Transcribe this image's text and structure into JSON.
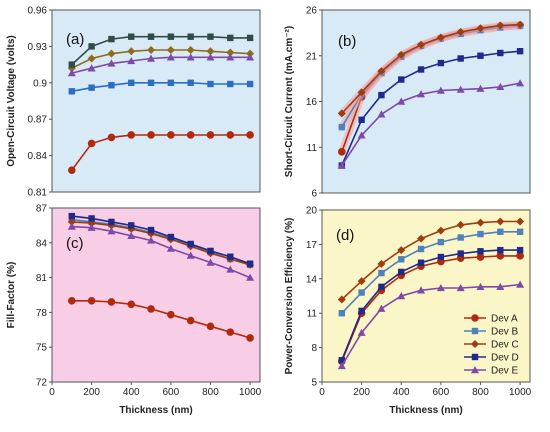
{
  "chart_data": [
    {
      "panel": "(a)",
      "type": "line",
      "bg": "#d9eaf7",
      "xlabel": "",
      "ylabel": "Open-Circuit Voltage (volts)",
      "xlim": [
        0,
        1050
      ],
      "ylim": [
        0.81,
        0.96
      ],
      "yticks": [
        0.81,
        0.84,
        0.87,
        0.9,
        0.93,
        0.96
      ],
      "xticks": [],
      "ytick_labels": [
        "0.81",
        "0.84",
        "0.87",
        "0.9",
        "0.93",
        "0.96"
      ],
      "xtick_labels": [],
      "x": [
        100,
        200,
        300,
        400,
        500,
        600,
        700,
        800,
        900,
        1000
      ],
      "series": [
        {
          "name": "Dev A",
          "values": [
            0.828,
            0.85,
            0.855,
            0.857,
            0.857,
            0.857,
            0.857,
            0.857,
            0.857,
            0.857
          ]
        },
        {
          "name": "Dev B",
          "values": [
            0.893,
            0.896,
            0.898,
            0.9,
            0.9,
            0.9,
            0.9,
            0.899,
            0.899,
            0.899
          ]
        },
        {
          "name": "Dev C",
          "values": [
            0.912,
            0.92,
            0.924,
            0.926,
            0.927,
            0.927,
            0.927,
            0.926,
            0.925,
            0.924
          ]
        },
        {
          "name": "Dev D",
          "values": [
            0.915,
            0.93,
            0.936,
            0.938,
            0.938,
            0.938,
            0.938,
            0.938,
            0.937,
            0.937
          ]
        },
        {
          "name": "Dev E",
          "values": [
            0.908,
            0.912,
            0.916,
            0.918,
            0.92,
            0.921,
            0.921,
            0.921,
            0.921,
            0.921
          ]
        }
      ]
    },
    {
      "panel": "(b)",
      "type": "line",
      "bg": "#d9eaf7",
      "xlabel": "",
      "ylabel": "Short-Circuit Current (mA.cm⁻²)",
      "xlim": [
        0,
        1050
      ],
      "ylim": [
        6,
        26
      ],
      "yticks": [
        6,
        11,
        16,
        21,
        26
      ],
      "xticks": [],
      "ytick_labels": [
        "6",
        "11",
        "16",
        "21",
        "26"
      ],
      "xtick_labels": [],
      "x": [
        100,
        200,
        300,
        400,
        500,
        600,
        700,
        800,
        900,
        1000
      ],
      "series": [
        {
          "name": "Dev A",
          "values": [
            10.5,
            16.5,
            19.2,
            21.0,
            22.1,
            22.9,
            23.5,
            23.9,
            24.2,
            24.3
          ]
        },
        {
          "name": "Dev B",
          "values": [
            13.2,
            16.8,
            19.1,
            20.9,
            22.1,
            22.9,
            23.4,
            23.8,
            24.1,
            24.3
          ]
        },
        {
          "name": "Dev C",
          "values": [
            14.7,
            17.0,
            19.3,
            21.1,
            22.2,
            23.0,
            23.6,
            24.0,
            24.3,
            24.4
          ]
        },
        {
          "name": "Dev D",
          "values": [
            9.0,
            14.0,
            16.7,
            18.4,
            19.5,
            20.2,
            20.7,
            21.0,
            21.3,
            21.5
          ]
        },
        {
          "name": "Dev E",
          "values": [
            9.0,
            12.3,
            14.6,
            16.0,
            16.8,
            17.2,
            17.3,
            17.4,
            17.6,
            18.0
          ]
        }
      ]
    },
    {
      "panel": "(c)",
      "type": "line",
      "bg": "#f8cde6",
      "xlabel": "Thickness (nm)",
      "ylabel": "Fill-Factor (%)",
      "xlim": [
        0,
        1050
      ],
      "ylim": [
        72,
        87
      ],
      "yticks": [
        72,
        75,
        78,
        81,
        84,
        87
      ],
      "xticks": [
        0,
        200,
        400,
        600,
        800,
        1000
      ],
      "ytick_labels": [
        "72",
        "75",
        "78",
        "81",
        "84",
        "87"
      ],
      "xtick_labels": [
        "0",
        "200",
        "400",
        "600",
        "800",
        "1000"
      ],
      "x": [
        100,
        200,
        300,
        400,
        500,
        600,
        700,
        800,
        900,
        1000
      ],
      "series": [
        {
          "name": "Dev A",
          "values": [
            79.0,
            79.0,
            78.9,
            78.7,
            78.3,
            77.8,
            77.3,
            76.8,
            76.3,
            75.8
          ]
        },
        {
          "name": "Dev B",
          "values": [
            86.0,
            85.8,
            85.6,
            85.3,
            84.9,
            84.4,
            83.8,
            83.2,
            82.6,
            82.1
          ]
        },
        {
          "name": "Dev C",
          "values": [
            85.8,
            85.7,
            85.5,
            85.2,
            84.8,
            84.3,
            83.7,
            83.1,
            82.6,
            82.1
          ]
        },
        {
          "name": "Dev D",
          "values": [
            86.3,
            86.1,
            85.8,
            85.5,
            85.1,
            84.5,
            83.9,
            83.3,
            82.8,
            82.2
          ]
        },
        {
          "name": "Dev E",
          "values": [
            85.4,
            85.3,
            85.0,
            84.6,
            84.2,
            83.5,
            82.9,
            82.3,
            81.7,
            81.0
          ]
        }
      ]
    },
    {
      "panel": "(d)",
      "type": "line",
      "bg": "#fbf6c8",
      "xlabel": "Thickness (nm)",
      "ylabel": "Power-Conversion Efficiency (%)",
      "xlim": [
        0,
        1050
      ],
      "ylim": [
        5,
        20
      ],
      "yticks": [
        5,
        8,
        11,
        14,
        17,
        20
      ],
      "xticks": [
        0,
        200,
        400,
        600,
        800,
        1000
      ],
      "ytick_labels": [
        "5",
        "8",
        "11",
        "14",
        "17",
        "20"
      ],
      "xtick_labels": [
        "0",
        "200",
        "400",
        "600",
        "800",
        "1000"
      ],
      "x": [
        100,
        200,
        300,
        400,
        500,
        600,
        700,
        800,
        900,
        1000
      ],
      "series": [
        {
          "name": "Dev A",
          "values": [
            6.8,
            11.0,
            13.0,
            14.3,
            15.1,
            15.5,
            15.8,
            15.9,
            16.0,
            16.0
          ]
        },
        {
          "name": "Dev B",
          "values": [
            11.0,
            12.8,
            14.5,
            15.7,
            16.6,
            17.2,
            17.6,
            17.9,
            18.1,
            18.1
          ]
        },
        {
          "name": "Dev C",
          "values": [
            12.2,
            13.8,
            15.3,
            16.5,
            17.5,
            18.2,
            18.7,
            18.9,
            19.0,
            19.0
          ]
        },
        {
          "name": "Dev D",
          "values": [
            6.9,
            11.2,
            13.3,
            14.6,
            15.4,
            15.9,
            16.2,
            16.4,
            16.5,
            16.5
          ]
        },
        {
          "name": "Dev E",
          "values": [
            6.4,
            9.3,
            11.4,
            12.5,
            13.0,
            13.2,
            13.2,
            13.3,
            13.3,
            13.5
          ]
        }
      ]
    }
  ],
  "legend": {
    "placement": "bottom-right of panel (d)",
    "entries": [
      "Dev A",
      "Dev B",
      "Dev C",
      "Dev D",
      "Dev E"
    ]
  },
  "series_styles": [
    {
      "name": "Dev A",
      "color": "#b22a0e",
      "marker": "circle"
    },
    {
      "name": "Dev B",
      "color": "#4f81bd",
      "marker": "square"
    },
    {
      "name": "Dev C",
      "color": "#9e3d0f",
      "marker": "diamond"
    },
    {
      "name": "Dev D",
      "color": "#1f2a8a",
      "marker": "square"
    },
    {
      "name": "Dev E",
      "color": "#7e4aa8",
      "marker": "triangle"
    }
  ],
  "panel_a_series_colors": [
    "#b22a0e",
    "#2c6fbf",
    "#8f6b1a",
    "#2f4b4a",
    "#7e4aa8"
  ],
  "panel_b_series_colors": [
    "#b22a0e",
    "#4f81bd",
    "#9e3d0f",
    "#1f2a8a",
    "#7e4aa8"
  ],
  "highlight_color": "#f2a0a0"
}
